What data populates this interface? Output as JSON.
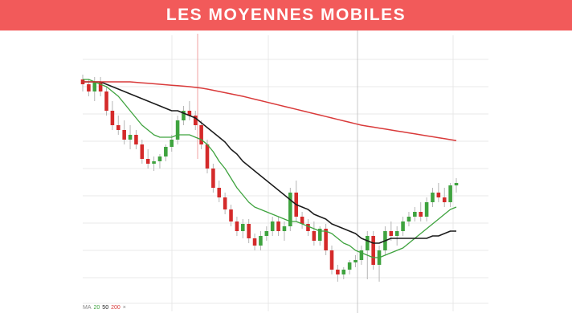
{
  "banner": {
    "title": "LES MOYENNES MOBILES",
    "background": "#f25a5a"
  },
  "legend": {
    "prefix": "MA",
    "ma20_label": "20",
    "ma50_label": "50",
    "ma200_label": "200",
    "close_symbol": "×"
  },
  "colors": {
    "bull": "#3fa33f",
    "bear": "#d42a2a",
    "wick": "#b5b5b5",
    "ma20": "#3fa33f",
    "ma50": "#1a1a1a",
    "ma200": "#d93a3a",
    "grid": "#e9e9e9",
    "cursor_red": "#f0a0a0",
    "cursor_gray": "#c8c8c8"
  },
  "chart_data": {
    "type": "candlestick",
    "title": "",
    "xlabel": "",
    "ylabel": "",
    "grid": true,
    "ylim": [
      0,
      100
    ],
    "candles": [
      {
        "o": 87,
        "h": 89,
        "l": 82,
        "c": 85
      },
      {
        "o": 85,
        "h": 87,
        "l": 80,
        "c": 82
      },
      {
        "o": 82,
        "h": 88,
        "l": 78,
        "c": 86
      },
      {
        "o": 86,
        "h": 88,
        "l": 80,
        "c": 82
      },
      {
        "o": 82,
        "h": 84,
        "l": 72,
        "c": 74
      },
      {
        "o": 74,
        "h": 78,
        "l": 66,
        "c": 68
      },
      {
        "o": 68,
        "h": 72,
        "l": 64,
        "c": 66
      },
      {
        "o": 66,
        "h": 70,
        "l": 60,
        "c": 62
      },
      {
        "o": 62,
        "h": 68,
        "l": 58,
        "c": 64
      },
      {
        "o": 64,
        "h": 66,
        "l": 58,
        "c": 60
      },
      {
        "o": 60,
        "h": 62,
        "l": 52,
        "c": 54
      },
      {
        "o": 54,
        "h": 58,
        "l": 50,
        "c": 52
      },
      {
        "o": 52,
        "h": 55,
        "l": 49,
        "c": 53
      },
      {
        "o": 53,
        "h": 56,
        "l": 50,
        "c": 55
      },
      {
        "o": 55,
        "h": 60,
        "l": 53,
        "c": 59
      },
      {
        "o": 59,
        "h": 64,
        "l": 57,
        "c": 62
      },
      {
        "o": 62,
        "h": 72,
        "l": 60,
        "c": 70
      },
      {
        "o": 70,
        "h": 76,
        "l": 68,
        "c": 74
      },
      {
        "o": 74,
        "h": 78,
        "l": 70,
        "c": 72
      },
      {
        "o": 72,
        "h": 74,
        "l": 66,
        "c": 68
      },
      {
        "o": 68,
        "h": 70,
        "l": 58,
        "c": 60
      },
      {
        "o": 60,
        "h": 62,
        "l": 48,
        "c": 50
      },
      {
        "o": 50,
        "h": 52,
        "l": 40,
        "c": 42
      },
      {
        "o": 42,
        "h": 45,
        "l": 36,
        "c": 38
      },
      {
        "o": 38,
        "h": 40,
        "l": 31,
        "c": 33
      },
      {
        "o": 33,
        "h": 35,
        "l": 26,
        "c": 28
      },
      {
        "o": 28,
        "h": 30,
        "l": 22,
        "c": 24
      },
      {
        "o": 24,
        "h": 29,
        "l": 21,
        "c": 27
      },
      {
        "o": 27,
        "h": 29,
        "l": 19,
        "c": 21
      },
      {
        "o": 21,
        "h": 23,
        "l": 16,
        "c": 18
      },
      {
        "o": 18,
        "h": 24,
        "l": 16,
        "c": 22
      },
      {
        "o": 22,
        "h": 26,
        "l": 20,
        "c": 24
      },
      {
        "o": 24,
        "h": 30,
        "l": 22,
        "c": 28
      },
      {
        "o": 28,
        "h": 30,
        "l": 22,
        "c": 24
      },
      {
        "o": 24,
        "h": 28,
        "l": 20,
        "c": 26
      },
      {
        "o": 26,
        "h": 42,
        "l": 24,
        "c": 40
      },
      {
        "o": 40,
        "h": 45,
        "l": 28,
        "c": 30
      },
      {
        "o": 30,
        "h": 32,
        "l": 25,
        "c": 27
      },
      {
        "o": 27,
        "h": 29,
        "l": 22,
        "c": 24
      },
      {
        "o": 24,
        "h": 28,
        "l": 18,
        "c": 20
      },
      {
        "o": 20,
        "h": 26,
        "l": 18,
        "c": 25
      },
      {
        "o": 25,
        "h": 27,
        "l": 14,
        "c": 16
      },
      {
        "o": 16,
        "h": 18,
        "l": 6,
        "c": 8
      },
      {
        "o": 8,
        "h": 10,
        "l": 3,
        "c": 6
      },
      {
        "o": 6,
        "h": 9,
        "l": 4,
        "c": 8
      },
      {
        "o": 8,
        "h": 12,
        "l": 6,
        "c": 11
      },
      {
        "o": 11,
        "h": 14,
        "l": 9,
        "c": 12
      },
      {
        "o": 12,
        "h": 18,
        "l": 10,
        "c": 16
      },
      {
        "o": 16,
        "h": 24,
        "l": 4,
        "c": 22
      },
      {
        "o": 22,
        "h": 24,
        "l": 8,
        "c": 10
      },
      {
        "o": 10,
        "h": 18,
        "l": 3,
        "c": 16
      },
      {
        "o": 16,
        "h": 26,
        "l": 14,
        "c": 24
      },
      {
        "o": 24,
        "h": 28,
        "l": 20,
        "c": 22
      },
      {
        "o": 22,
        "h": 26,
        "l": 18,
        "c": 24
      },
      {
        "o": 24,
        "h": 30,
        "l": 22,
        "c": 28
      },
      {
        "o": 28,
        "h": 32,
        "l": 26,
        "c": 30
      },
      {
        "o": 30,
        "h": 34,
        "l": 28,
        "c": 32
      },
      {
        "o": 32,
        "h": 36,
        "l": 28,
        "c": 30
      },
      {
        "o": 30,
        "h": 38,
        "l": 28,
        "c": 36
      },
      {
        "o": 36,
        "h": 42,
        "l": 34,
        "c": 40
      },
      {
        "o": 40,
        "h": 44,
        "l": 36,
        "c": 38
      },
      {
        "o": 38,
        "h": 42,
        "l": 34,
        "c": 36
      },
      {
        "o": 36,
        "h": 44,
        "l": 34,
        "c": 43
      },
      {
        "o": 43,
        "h": 46,
        "l": 40,
        "c": 44
      }
    ],
    "series": [
      {
        "name": "20",
        "values": [
          87,
          87,
          86,
          85,
          84,
          82,
          80,
          77,
          74,
          71,
          68,
          66,
          64,
          63,
          63,
          63,
          64,
          64,
          64,
          63,
          62,
          60,
          57,
          53,
          50,
          46,
          42,
          39,
          36,
          34,
          33,
          32,
          31,
          30,
          29,
          28,
          28,
          27,
          26,
          25,
          24,
          24,
          23,
          21,
          19,
          18,
          16,
          15,
          14,
          13,
          13,
          14,
          15,
          16,
          17,
          19,
          21,
          23,
          25,
          27,
          29,
          31,
          33,
          34
        ]
      },
      {
        "name": "50",
        "values": [
          86,
          86,
          86,
          86,
          85,
          84,
          83,
          82,
          81,
          80,
          79,
          78,
          77,
          76,
          75,
          74,
          74,
          73,
          72,
          71,
          69,
          67,
          65,
          63,
          61,
          58,
          56,
          53,
          51,
          49,
          47,
          45,
          43,
          41,
          39,
          37,
          35,
          34,
          33,
          31,
          30,
          29,
          27,
          26,
          25,
          24,
          23,
          21,
          20,
          19,
          19,
          20,
          21,
          21,
          21,
          21,
          21,
          21,
          21,
          22,
          22,
          23,
          24,
          24
        ]
      },
      {
        "name": "200",
        "values": [
          86,
          86,
          86,
          86,
          86,
          86,
          86,
          86,
          86,
          85.8,
          85.6,
          85.4,
          85.2,
          85,
          84.8,
          84.6,
          84.4,
          84.2,
          84,
          83.7,
          83.4,
          83,
          82.5,
          82,
          81.5,
          81,
          80.5,
          80,
          79.4,
          78.8,
          78.2,
          77.6,
          77,
          76.4,
          75.8,
          75.2,
          74.6,
          74,
          73.4,
          72.8,
          72.2,
          71.6,
          71,
          70.4,
          69.8,
          69.2,
          68.6,
          68,
          67.6,
          67.2,
          66.8,
          66.4,
          66,
          65.6,
          65.2,
          64.8,
          64.4,
          64,
          63.6,
          63.2,
          62.8,
          62.4,
          62,
          61.6
        ]
      }
    ]
  }
}
